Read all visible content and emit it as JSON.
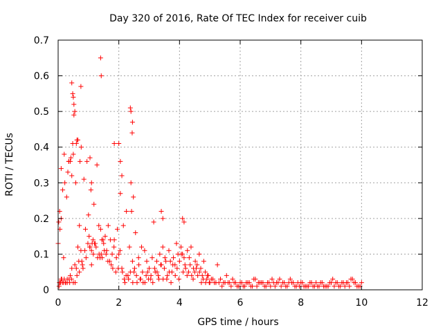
{
  "chart_data": {
    "type": "scatter",
    "title": "Day 320 of 2016, Rate Of TEC Index for receiver cuib",
    "xlabel": "GPS time / hours",
    "ylabel": "ROTI / TECUs",
    "xlim": [
      0,
      12
    ],
    "ylim": [
      0,
      0.7
    ],
    "xticks": [
      0,
      2,
      4,
      6,
      8,
      10,
      12
    ],
    "xtick_labels": [
      "0",
      "2",
      "4",
      "6",
      "8",
      "10",
      "12"
    ],
    "yticks": [
      0,
      0.1,
      0.2,
      0.3,
      0.4,
      0.5,
      0.6,
      0.7
    ],
    "ytick_labels": [
      "0",
      "0.1",
      "0.2",
      "0.3",
      "0.4",
      "0.5",
      "0.6",
      "0.7"
    ],
    "grid": true,
    "marker": "+",
    "series": [
      {
        "name": "ROTI",
        "color": "#ff0000",
        "x": [
          0.0,
          0.02,
          0.04,
          0.05,
          0.06,
          0.08,
          0.1,
          0.12,
          0.15,
          0.18,
          0.2,
          0.22,
          0.25,
          0.28,
          0.3,
          0.32,
          0.35,
          0.38,
          0.4,
          0.42,
          0.45,
          0.48,
          0.5,
          0.52,
          0.55,
          0.58,
          0.6,
          0.62,
          0.65,
          0.68,
          0.7,
          0.72,
          0.75,
          0.78,
          0.8,
          0.85,
          0.9,
          0.95,
          1.0,
          1.02,
          1.05,
          1.08,
          1.1,
          1.12,
          1.15,
          1.18,
          1.2,
          1.25,
          1.3,
          1.35,
          1.4,
          1.42,
          1.45,
          1.48,
          1.5,
          1.55,
          1.6,
          1.65,
          1.7,
          1.75,
          1.8,
          1.85,
          1.9,
          1.95,
          2.0,
          2.05,
          2.1,
          2.15,
          2.2,
          2.25,
          2.3,
          2.35,
          2.4,
          2.42,
          2.45,
          2.48,
          2.5,
          2.55,
          2.6,
          2.65,
          2.7,
          2.75,
          2.8,
          2.85,
          2.9,
          2.95,
          3.0,
          3.05,
          3.1,
          3.15,
          3.2,
          3.25,
          3.3,
          3.35,
          3.4,
          3.45,
          3.5,
          3.55,
          3.6,
          3.65,
          3.7,
          3.75,
          3.8,
          3.85,
          3.9,
          3.95,
          4.0,
          4.05,
          4.1,
          4.15,
          4.2,
          4.25,
          4.3,
          4.35,
          4.4,
          4.45,
          4.5,
          4.55,
          4.6,
          4.65,
          4.7,
          4.75,
          4.8,
          4.85,
          4.9,
          4.95,
          5.0,
          5.1,
          5.2,
          5.3,
          5.4,
          5.5,
          5.6,
          5.7,
          5.8,
          5.9,
          6.0,
          6.1,
          6.2,
          6.3,
          6.4,
          6.5,
          6.6,
          6.7,
          6.8,
          6.9,
          7.0,
          7.1,
          7.2,
          7.3,
          7.4,
          7.5,
          7.6,
          7.7,
          7.8,
          7.9,
          8.0,
          8.1,
          8.2,
          8.3,
          8.4,
          8.5,
          8.6,
          8.7,
          8.8,
          8.9,
          9.0,
          9.1,
          9.2,
          9.3,
          9.4,
          9.5,
          9.6,
          9.7,
          9.8,
          9.9,
          10.0,
          0.03,
          0.07,
          0.1,
          0.14,
          0.18,
          0.24,
          0.3,
          0.36,
          0.44,
          0.5,
          0.56,
          0.62,
          0.7,
          0.76,
          0.82,
          0.88,
          0.92,
          0.98,
          1.04,
          1.1,
          1.16,
          1.22,
          1.28,
          1.34,
          1.38,
          1.44,
          1.52,
          1.58,
          1.64,
          1.72,
          1.78,
          1.84,
          1.92,
          1.98,
          2.04,
          2.12,
          2.18,
          2.24,
          2.32,
          2.38,
          2.46,
          2.52,
          2.58,
          2.66,
          2.72,
          2.78,
          2.86,
          2.92,
          2.98,
          3.06,
          3.12,
          3.18,
          3.26,
          3.32,
          3.38,
          3.46,
          3.52,
          3.58,
          3.66,
          3.72,
          3.78,
          3.86,
          3.92,
          3.98,
          4.06,
          4.12,
          4.18,
          4.26,
          4.32,
          4.38,
          4.46,
          4.52,
          4.58,
          4.66,
          4.72,
          4.78,
          4.86,
          4.92,
          4.98,
          5.05,
          5.15,
          5.25,
          5.35,
          5.45,
          5.55,
          5.65,
          5.75,
          5.85,
          5.95,
          6.05,
          6.15,
          6.25,
          6.35,
          6.45,
          6.55,
          6.65,
          6.75,
          6.85,
          6.95,
          7.05,
          7.15,
          7.25,
          7.35,
          7.45,
          7.55,
          7.65,
          7.75,
          7.85,
          7.95,
          8.05,
          8.15,
          8.25,
          8.35,
          8.45,
          8.55,
          8.65,
          8.75,
          8.85,
          8.95,
          9.05,
          9.15,
          9.25,
          9.35,
          9.45,
          9.55,
          9.65,
          9.75,
          9.85,
          9.95,
          0.45,
          0.5,
          1.4,
          2.4,
          2.45,
          1.85,
          0.1,
          0.2,
          0.35,
          0.6,
          0.65,
          0.75,
          2.0,
          2.05,
          2.1,
          3.4,
          3.45,
          4.1,
          4.15,
          0.55,
          0.52,
          0.48,
          2.38,
          2.44,
          1.42,
          0.4,
          0.45,
          1.05,
          1.1
        ],
        "y": [
          0.13,
          0.19,
          0.02,
          0.22,
          0.17,
          0.02,
          0.2,
          0.03,
          0.28,
          0.02,
          0.03,
          0.3,
          0.02,
          0.26,
          0.03,
          0.33,
          0.36,
          0.02,
          0.04,
          0.37,
          0.06,
          0.41,
          0.38,
          0.52,
          0.07,
          0.3,
          0.06,
          0.42,
          0.12,
          0.08,
          0.18,
          0.36,
          0.11,
          0.08,
          0.07,
          0.31,
          0.17,
          0.36,
          0.21,
          0.15,
          0.12,
          0.28,
          0.11,
          0.13,
          0.14,
          0.24,
          0.13,
          0.12,
          0.09,
          0.1,
          0.17,
          0.1,
          0.09,
          0.14,
          0.13,
          0.15,
          0.11,
          0.18,
          0.08,
          0.07,
          0.06,
          0.14,
          0.05,
          0.17,
          0.1,
          0.27,
          0.06,
          0.18,
          0.02,
          0.22,
          0.04,
          0.12,
          0.3,
          0.22,
          0.08,
          0.26,
          0.05,
          0.16,
          0.02,
          0.09,
          0.03,
          0.12,
          0.02,
          0.11,
          0.04,
          0.05,
          0.06,
          0.03,
          0.09,
          0.19,
          0.05,
          0.08,
          0.04,
          0.1,
          0.07,
          0.12,
          0.06,
          0.08,
          0.04,
          0.11,
          0.08,
          0.05,
          0.09,
          0.07,
          0.13,
          0.1,
          0.08,
          0.12,
          0.1,
          0.09,
          0.06,
          0.04,
          0.05,
          0.07,
          0.04,
          0.03,
          0.05,
          0.06,
          0.04,
          0.1,
          0.06,
          0.04,
          0.08,
          0.05,
          0.03,
          0.04,
          0.02,
          0.03,
          0.02,
          0.02,
          0.01,
          0.02,
          0.02,
          0.01,
          0.02,
          0.01,
          0.02,
          0.01,
          0.02,
          0.02,
          0.01,
          0.03,
          0.02,
          0.02,
          0.01,
          0.02,
          0.01,
          0.02,
          0.02,
          0.03,
          0.02,
          0.01,
          0.02,
          0.02,
          0.01,
          0.02,
          0.02,
          0.01,
          0.01,
          0.02,
          0.01,
          0.02,
          0.01,
          0.02,
          0.01,
          0.01,
          0.02,
          0.01,
          0.02,
          0.01,
          0.02,
          0.02,
          0.01,
          0.03,
          0.02,
          0.01,
          0.02,
          0.01,
          0.02,
          0.03,
          0.02,
          0.09,
          0.02,
          0.02,
          0.03,
          0.03,
          0.02,
          0.02,
          0.04,
          0.05,
          0.4,
          0.06,
          0.11,
          0.09,
          0.13,
          0.12,
          0.07,
          0.1,
          0.13,
          0.35,
          0.18,
          0.09,
          0.14,
          0.11,
          0.1,
          0.08,
          0.14,
          0.1,
          0.12,
          0.09,
          0.06,
          0.11,
          0.05,
          0.03,
          0.04,
          0.03,
          0.05,
          0.02,
          0.06,
          0.04,
          0.07,
          0.03,
          0.05,
          0.02,
          0.08,
          0.03,
          0.04,
          0.02,
          0.06,
          0.05,
          0.03,
          0.07,
          0.03,
          0.09,
          0.03,
          0.05,
          0.02,
          0.07,
          0.04,
          0.06,
          0.03,
          0.1,
          0.05,
          0.07,
          0.11,
          0.09,
          0.12,
          0.06,
          0.08,
          0.07,
          0.05,
          0.02,
          0.03,
          0.02,
          0.04,
          0.02,
          0.03,
          0.02,
          0.07,
          0.03,
          0.02,
          0.04,
          0.02,
          0.03,
          0.02,
          0.01,
          0.02,
          0.01,
          0.02,
          0.01,
          0.03,
          0.01,
          0.02,
          0.02,
          0.01,
          0.02,
          0.03,
          0.01,
          0.02,
          0.01,
          0.02,
          0.01,
          0.03,
          0.02,
          0.01,
          0.01,
          0.02,
          0.01,
          0.01,
          0.02,
          0.01,
          0.01,
          0.02,
          0.01,
          0.01,
          0.02,
          0.03,
          0.02,
          0.01,
          0.02,
          0.01,
          0.02,
          0.03,
          0.02,
          0.01,
          0.01,
          0.58,
          0.54,
          0.65,
          0.5,
          0.47,
          0.41,
          0.34,
          0.38,
          0.36,
          0.41,
          0.42,
          0.57,
          0.41,
          0.36,
          0.32,
          0.22,
          0.2,
          0.2,
          0.19,
          0.5,
          0.49,
          0.55,
          0.51,
          0.44,
          0.6,
          0.36,
          0.32,
          0.37,
          0.3
        ]
      }
    ]
  }
}
